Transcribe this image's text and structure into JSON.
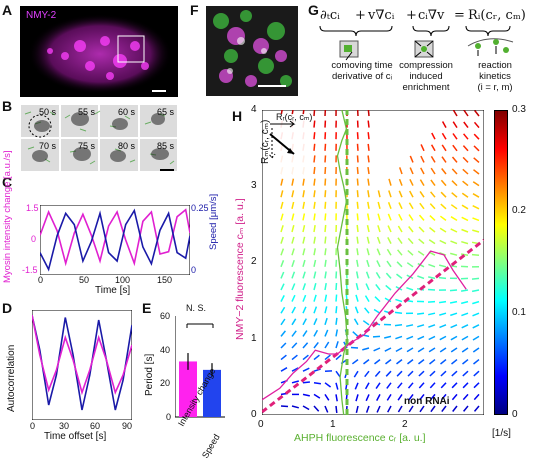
{
  "panels": {
    "A": {
      "letter": "A",
      "label": "NMY-2"
    },
    "B": {
      "letter": "B",
      "frames": [
        "50 s",
        "55 s",
        "60 s",
        "65 s",
        "70 s",
        "75 s",
        "80 s",
        "85 s"
      ]
    },
    "C": {
      "letter": "C",
      "ylabel_left": "Myosin intensity change [a.u./s]",
      "ylabel_right": "Speed [μm/s]",
      "xlabel": "Time [s]",
      "yticks_left": [
        "1.5",
        "0",
        "-1.5"
      ],
      "yticks_right": [
        "0.25",
        "0"
      ],
      "xticks": [
        "0",
        "50",
        "100",
        "150"
      ]
    },
    "D": {
      "letter": "D",
      "ylabel": "Autocorrelation",
      "xlabel": "Time offset [s]",
      "xticks": [
        "0",
        "30",
        "60",
        "90"
      ]
    },
    "E": {
      "letter": "E",
      "ylabel": "Period [s]",
      "ns": "N. S.",
      "yticks": [
        "0",
        "20",
        "40",
        "60"
      ],
      "cat1": "Intensity change",
      "cat2": "Speed"
    },
    "F": {
      "letter": "F"
    },
    "G": {
      "letter": "G",
      "equation": {
        "t1": "∂ₜcᵢ",
        "plus1": "+",
        "t2": "v∇cᵢ",
        "plus2": "+",
        "t3": "cᵢ∇v",
        "eq": "=",
        "t4": "Rᵢ(cᵣ, cₘ)"
      },
      "captions": {
        "c1a": "comoving time",
        "c1b": "derivative of cᵢ",
        "c2a": "compression",
        "c2b": "induced",
        "c2c": "enrichment",
        "c3a": "reaction",
        "c3b": "kinetics",
        "c3c": "(i = r, m)"
      }
    },
    "H": {
      "letter": "H",
      "ylabel": "NMY−2 fluorescence cₘ [a. u.]",
      "xlabel": "AHPH fluorescence cᵣ [a. u.]",
      "xticks": [
        "0",
        "1",
        "2"
      ],
      "yticks": [
        "0",
        "1",
        "2",
        "3",
        "4"
      ],
      "annotation": "non RNAi",
      "legend_rr": "Rᵣ(cᵣ, cₘ)",
      "legend_rm": "Rₘ(cᵣ, cₘ)",
      "colorbar_ticks": [
        "0.3",
        "0.2",
        "0.1",
        "0"
      ],
      "colorbar_unit": "[1/s]"
    }
  },
  "chart_data": [
    {
      "type": "line",
      "panel": "C",
      "x_range": [
        0,
        175
      ],
      "ylim_left": [
        -1.5,
        1.5
      ],
      "ylim_right": [
        0,
        0.25
      ],
      "series": [
        {
          "color": "#e020d0",
          "axis": "left",
          "x": [
            0,
            10,
            20,
            30,
            40,
            50,
            60,
            70,
            80,
            90,
            100,
            110,
            120,
            130,
            140,
            150,
            160,
            170,
            175
          ],
          "values": [
            0.2,
            1.2,
            0.4,
            -1.0,
            0.3,
            1.1,
            0.2,
            -0.9,
            0.6,
            1.2,
            0.0,
            -1.0,
            0.8,
            1.2,
            -0.6,
            -0.5,
            1.0,
            1.3,
            0.3
          ]
        },
        {
          "color": "#1a1aa8",
          "axis": "right",
          "x": [
            0,
            10,
            20,
            30,
            40,
            50,
            60,
            70,
            80,
            90,
            100,
            110,
            120,
            130,
            140,
            150,
            160,
            170,
            175
          ],
          "values": [
            0.08,
            0.02,
            0.14,
            0.22,
            0.18,
            0.05,
            0.12,
            0.22,
            0.08,
            0.05,
            0.18,
            0.23,
            0.1,
            0.04,
            0.16,
            0.22,
            0.08,
            0.06,
            0.14
          ]
        }
      ]
    },
    {
      "type": "line",
      "panel": "D",
      "x_range": [
        0,
        90
      ],
      "ylim": [
        -1,
        1
      ],
      "series": [
        {
          "color": "#1a1aa8",
          "x": [
            0,
            7,
            15,
            22,
            30,
            37,
            45,
            52,
            60,
            67,
            75,
            82,
            90
          ],
          "values": [
            1.0,
            0.3,
            -0.8,
            -0.2,
            0.95,
            0.2,
            -0.9,
            -0.2,
            0.9,
            0.1,
            -0.9,
            -0.3,
            0.8
          ]
        },
        {
          "color": "#e020d0",
          "x": [
            0,
            7,
            15,
            22,
            30,
            37,
            45,
            52,
            60,
            67,
            75,
            82,
            90
          ],
          "values": [
            1.0,
            0.2,
            -0.5,
            -0.1,
            0.55,
            0.1,
            -0.55,
            -0.1,
            0.55,
            0.1,
            -0.55,
            -0.2,
            0.4
          ]
        }
      ]
    },
    {
      "type": "bar",
      "panel": "E",
      "categories": [
        "Intensity change",
        "Speed"
      ],
      "values": [
        33,
        28
      ],
      "errors": [
        5,
        4
      ],
      "ylim": [
        0,
        60
      ],
      "colors": [
        "#ff22ee",
        "#2244ee"
      ]
    },
    {
      "type": "scatter",
      "panel": "H",
      "xlim": [
        0,
        2.5
      ],
      "ylim": [
        0,
        4
      ],
      "colorbar_range": [
        0,
        0.3
      ],
      "series": [
        {
          "color": "#e020a0",
          "x": [
            0.0,
            0.2,
            0.35,
            0.5,
            0.6,
            0.75,
            0.85,
            1.0,
            1.15,
            1.3,
            1.5,
            1.7,
            1.9,
            2.05,
            2.15,
            2.3
          ],
          "values": [
            0.2,
            0.35,
            0.55,
            0.7,
            0.85,
            0.8,
            0.8,
            0.95,
            1.05,
            1.3,
            1.6,
            1.85,
            2.15,
            2.1,
            1.9,
            1.65
          ]
        },
        {
          "color": "#6abf40",
          "x": [
            0.92,
            0.9,
            0.88,
            0.92,
            0.96,
            0.94,
            0.9,
            0.88,
            0.85,
            0.9,
            0.95,
            0.92,
            0.88,
            0.85,
            0.9,
            0.95,
            0.92,
            0.9
          ],
          "values": [
            0.0,
            0.2,
            0.5,
            0.8,
            1.0,
            1.3,
            1.6,
            1.9,
            2.2,
            2.5,
            2.8,
            3.0,
            3.2,
            3.4,
            3.6,
            3.75,
            3.9,
            4.0
          ]
        }
      ]
    }
  ]
}
